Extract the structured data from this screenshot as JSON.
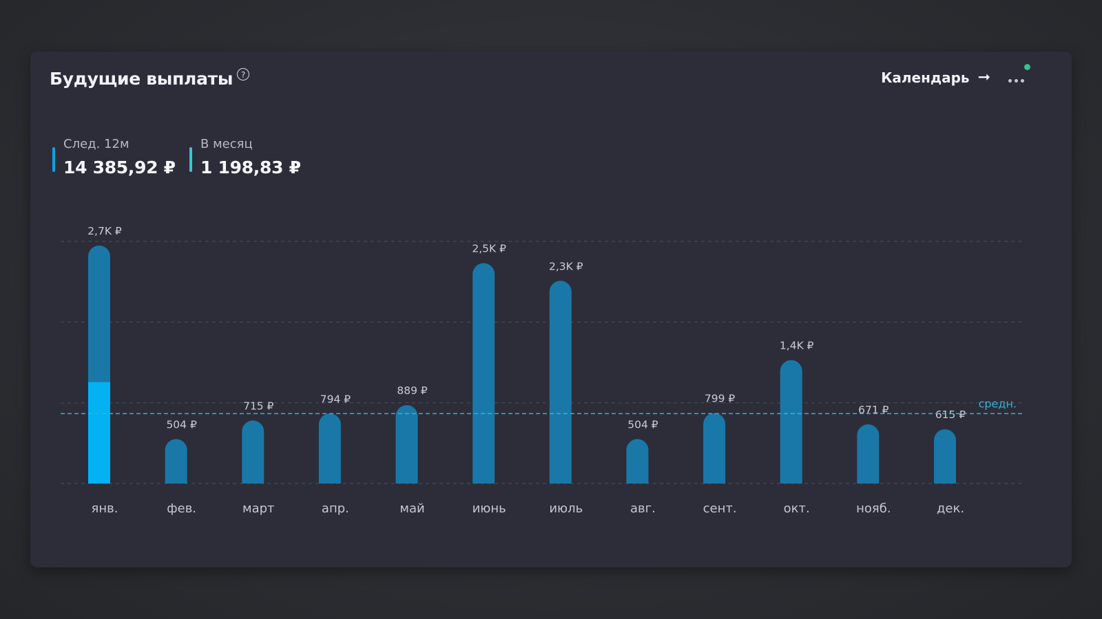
{
  "widget": {
    "title": "Будущие выплаты",
    "help_icon": "?",
    "calendar_label": "Календарь",
    "calendar_arrow": "➞",
    "more_icon": "ellipsis-icon",
    "status_color": "#33c28a"
  },
  "stats": [
    {
      "label": "След. 12м",
      "value": "14 385,92 ₽",
      "color": "#0aa3e6"
    },
    {
      "label": "В месяц",
      "value": "1 198,83 ₽",
      "color": "#35c6d9"
    }
  ],
  "chart_data": {
    "type": "bar",
    "categories": [
      "янв.",
      "фев.",
      "март",
      "апр.",
      "май",
      "июнь",
      "июль",
      "авг.",
      "сент.",
      "окт.",
      "нояб.",
      "дек."
    ],
    "values": [
      2700,
      504,
      715,
      794,
      889,
      2500,
      2300,
      504,
      799,
      1400,
      671,
      615
    ],
    "value_labels": [
      "2,7K ₽",
      "504 ₽",
      "715 ₽",
      "794 ₽",
      "889 ₽",
      "2,5K ₽",
      "2,3K ₽",
      "504 ₽",
      "799 ₽",
      "1,4K ₽",
      "671 ₽",
      "615 ₽"
    ],
    "highlight_value": 1150,
    "average_value": 1198.83,
    "average_label": "средн.",
    "ylim": [
      0,
      2700
    ],
    "grid": true,
    "bar_color": "#1a78a8",
    "highlight_color": "#04b1f2",
    "average_color": "#2fb6d8"
  }
}
